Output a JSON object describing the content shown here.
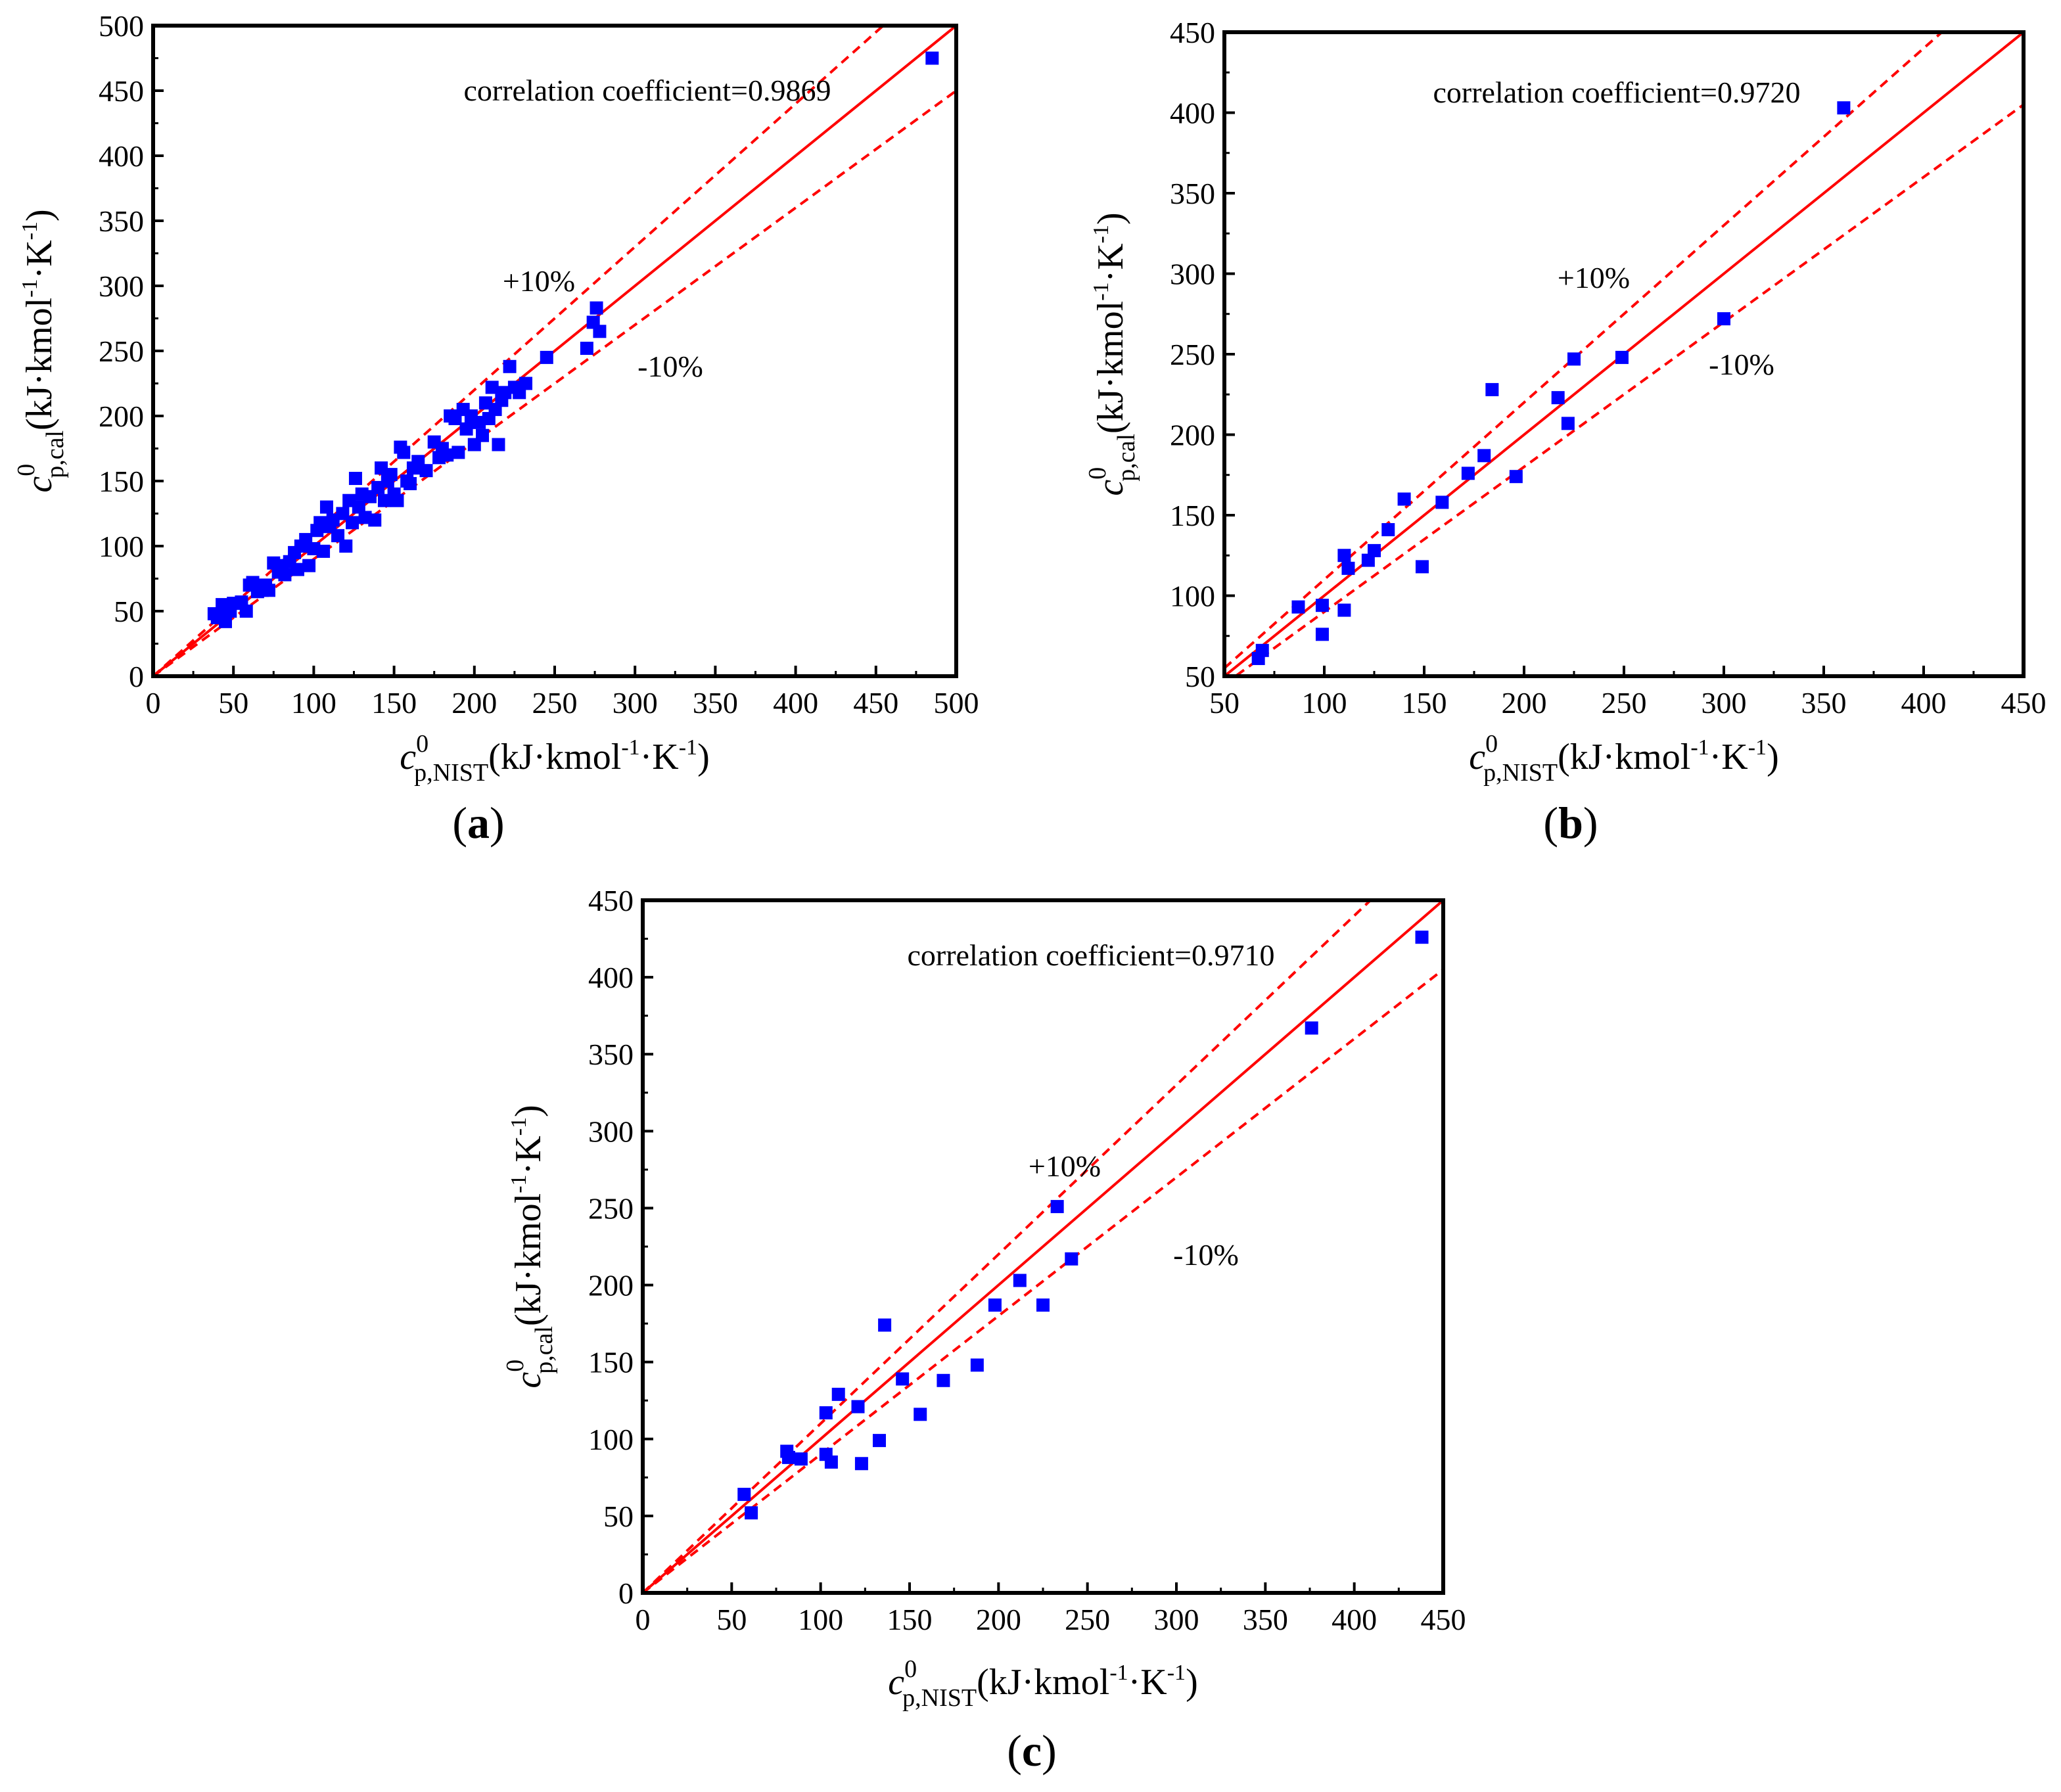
{
  "chart_data": [
    {
      "type": "scatter",
      "panel": "a",
      "panel_label": "a",
      "xlabel": "c",
      "xlabel_sup": "0",
      "xlabel_sub": "p,NIST",
      "xlabel_units": "(kJ·kmol",
      "xlabel_units_sup1": "-1",
      "xlabel_units_mid": "·K",
      "xlabel_units_sup2": "-1",
      "xlabel_units_end": ")",
      "ylabel": "c",
      "ylabel_sup": "0",
      "ylabel_sub": "p,cal",
      "ylabel_units": "(kJ·kmol",
      "ylabel_units_sup1": "-1",
      "ylabel_units_mid": "·K",
      "ylabel_units_sup2": "-1",
      "ylabel_units_end": ")",
      "xlim": [
        0,
        500
      ],
      "ylim": [
        0,
        500
      ],
      "xticks": [
        "0",
        "50",
        "100",
        "150",
        "200",
        "250",
        "300",
        "350",
        "400",
        "450",
        "500"
      ],
      "yticks": [
        "0",
        "50",
        "100",
        "150",
        "200",
        "250",
        "300",
        "350",
        "400",
        "450",
        "500"
      ],
      "annotation": "correlation coefficient=0.9869",
      "plus_label": "+10%",
      "minus_label": "-10%",
      "points": [
        [
          38,
          48
        ],
        [
          40,
          45
        ],
        [
          43,
          55
        ],
        [
          45,
          42
        ],
        [
          48,
          50
        ],
        [
          50,
          56
        ],
        [
          55,
          57
        ],
        [
          58,
          50
        ],
        [
          60,
          70
        ],
        [
          62,
          72
        ],
        [
          65,
          65
        ],
        [
          68,
          66
        ],
        [
          70,
          70
        ],
        [
          72,
          66
        ],
        [
          75,
          87
        ],
        [
          78,
          80
        ],
        [
          80,
          85
        ],
        [
          82,
          78
        ],
        [
          85,
          88
        ],
        [
          88,
          95
        ],
        [
          90,
          82
        ],
        [
          92,
          100
        ],
        [
          95,
          105
        ],
        [
          97,
          85
        ],
        [
          100,
          98
        ],
        [
          102,
          112
        ],
        [
          104,
          118
        ],
        [
          106,
          96
        ],
        [
          108,
          130
        ],
        [
          110,
          115
        ],
        [
          112,
          120
        ],
        [
          115,
          108
        ],
        [
          118,
          125
        ],
        [
          120,
          100
        ],
        [
          122,
          135
        ],
        [
          124,
          118
        ],
        [
          126,
          152
        ],
        [
          128,
          130
        ],
        [
          130,
          140
        ],
        [
          132,
          122
        ],
        [
          135,
          138
        ],
        [
          138,
          120
        ],
        [
          140,
          145
        ],
        [
          142,
          160
        ],
        [
          144,
          135
        ],
        [
          146,
          150
        ],
        [
          148,
          155
        ],
        [
          150,
          140
        ],
        [
          152,
          135
        ],
        [
          154,
          176
        ],
        [
          156,
          172
        ],
        [
          158,
          150
        ],
        [
          160,
          148
        ],
        [
          162,
          160
        ],
        [
          165,
          165
        ],
        [
          170,
          158
        ],
        [
          175,
          180
        ],
        [
          178,
          168
        ],
        [
          180,
          175
        ],
        [
          183,
          170
        ],
        [
          185,
          200
        ],
        [
          188,
          198
        ],
        [
          190,
          172
        ],
        [
          193,
          205
        ],
        [
          195,
          190
        ],
        [
          198,
          200
        ],
        [
          200,
          178
        ],
        [
          203,
          195
        ],
        [
          205,
          185
        ],
        [
          207,
          210
        ],
        [
          209,
          198
        ],
        [
          211,
          222
        ],
        [
          213,
          205
        ],
        [
          215,
          178
        ],
        [
          217,
          212
        ],
        [
          219,
          218
        ],
        [
          222,
          238
        ],
        [
          225,
          222
        ],
        [
          228,
          218
        ],
        [
          232,
          225
        ],
        [
          245,
          245
        ],
        [
          270,
          252
        ],
        [
          274,
          272
        ],
        [
          276,
          283
        ],
        [
          278,
          265
        ],
        [
          485,
          475
        ]
      ]
    },
    {
      "type": "scatter",
      "panel": "b",
      "panel_label": "b",
      "xlabel": "c",
      "xlabel_sup": "0",
      "xlabel_sub": "p,NIST",
      "xlabel_units": "(kJ·kmol",
      "xlabel_units_sup1": "-1",
      "xlabel_units_mid": "·K",
      "xlabel_units_sup2": "-1",
      "xlabel_units_end": ")",
      "ylabel": "c",
      "ylabel_sup": "0",
      "ylabel_sub": "p,cal",
      "ylabel_units": "(kJ·kmol",
      "ylabel_units_sup1": "-1",
      "ylabel_units_mid": "·K",
      "ylabel_units_sup2": "-1",
      "ylabel_units_end": ")",
      "xlim": [
        50,
        450
      ],
      "ylim": [
        50,
        450
      ],
      "xticks": [
        "50",
        "100",
        "150",
        "200",
        "250",
        "300",
        "350",
        "400",
        "450"
      ],
      "yticks": [
        "50",
        "100",
        "150",
        "200",
        "250",
        "300",
        "350",
        "400",
        "450"
      ],
      "annotation": "correlation coefficient=0.9720",
      "plus_label": "+10%",
      "minus_label": "-10%",
      "points": [
        [
          67,
          61
        ],
        [
          69,
          66
        ],
        [
          87,
          93
        ],
        [
          99,
          94
        ],
        [
          99,
          76
        ],
        [
          110,
          125
        ],
        [
          110,
          91
        ],
        [
          112,
          117
        ],
        [
          122,
          122
        ],
        [
          125,
          128
        ],
        [
          132,
          141
        ],
        [
          140,
          160
        ],
        [
          149,
          118
        ],
        [
          159,
          158
        ],
        [
          172,
          176
        ],
        [
          180,
          187
        ],
        [
          184,
          228
        ],
        [
          196,
          174
        ],
        [
          217,
          223
        ],
        [
          222,
          207
        ],
        [
          225,
          247
        ],
        [
          249,
          248
        ],
        [
          300,
          272
        ],
        [
          360,
          403
        ]
      ]
    },
    {
      "type": "scatter",
      "panel": "c",
      "panel_label": "c",
      "xlabel": "c",
      "xlabel_sup": "0",
      "xlabel_sub": "p,NIST",
      "xlabel_units": "(kJ·kmol",
      "xlabel_units_sup1": "-1",
      "xlabel_units_mid": "·K",
      "xlabel_units_sup2": "-1",
      "xlabel_units_end": ")",
      "ylabel": "c",
      "ylabel_sup": "0",
      "ylabel_sub": "p,cal",
      "ylabel_units": "(kJ·kmol",
      "ylabel_units_sup1": "-1",
      "ylabel_units_mid": "·K",
      "ylabel_units_sup2": "-1",
      "ylabel_units_end": ")",
      "xlim": [
        0,
        450
      ],
      "ylim": [
        0,
        450
      ],
      "xticks": [
        "0",
        "50",
        "100",
        "150",
        "200",
        "250",
        "300",
        "350",
        "400",
        "450"
      ],
      "yticks": [
        "0",
        "50",
        "100",
        "150",
        "200",
        "250",
        "300",
        "350",
        "400",
        "450"
      ],
      "annotation": "correlation coefficient=0.9710",
      "plus_label": "+10%",
      "minus_label": "-10%",
      "points": [
        [
          57,
          64
        ],
        [
          61,
          52
        ],
        [
          81,
          92
        ],
        [
          82,
          88
        ],
        [
          89,
          87
        ],
        [
          103,
          117
        ],
        [
          103,
          90
        ],
        [
          106,
          85
        ],
        [
          110,
          129
        ],
        [
          121,
          121
        ],
        [
          123,
          84
        ],
        [
          133,
          99
        ],
        [
          136,
          174
        ],
        [
          146,
          139
        ],
        [
          156,
          116
        ],
        [
          169,
          138
        ],
        [
          188,
          148
        ],
        [
          198,
          187
        ],
        [
          212,
          203
        ],
        [
          225,
          187
        ],
        [
          233,
          251
        ],
        [
          241,
          217
        ],
        [
          376,
          367
        ],
        [
          438,
          426
        ]
      ]
    }
  ],
  "colors": {
    "marker": "#0000ff",
    "line": "#ff0000",
    "axis": "#000000"
  }
}
